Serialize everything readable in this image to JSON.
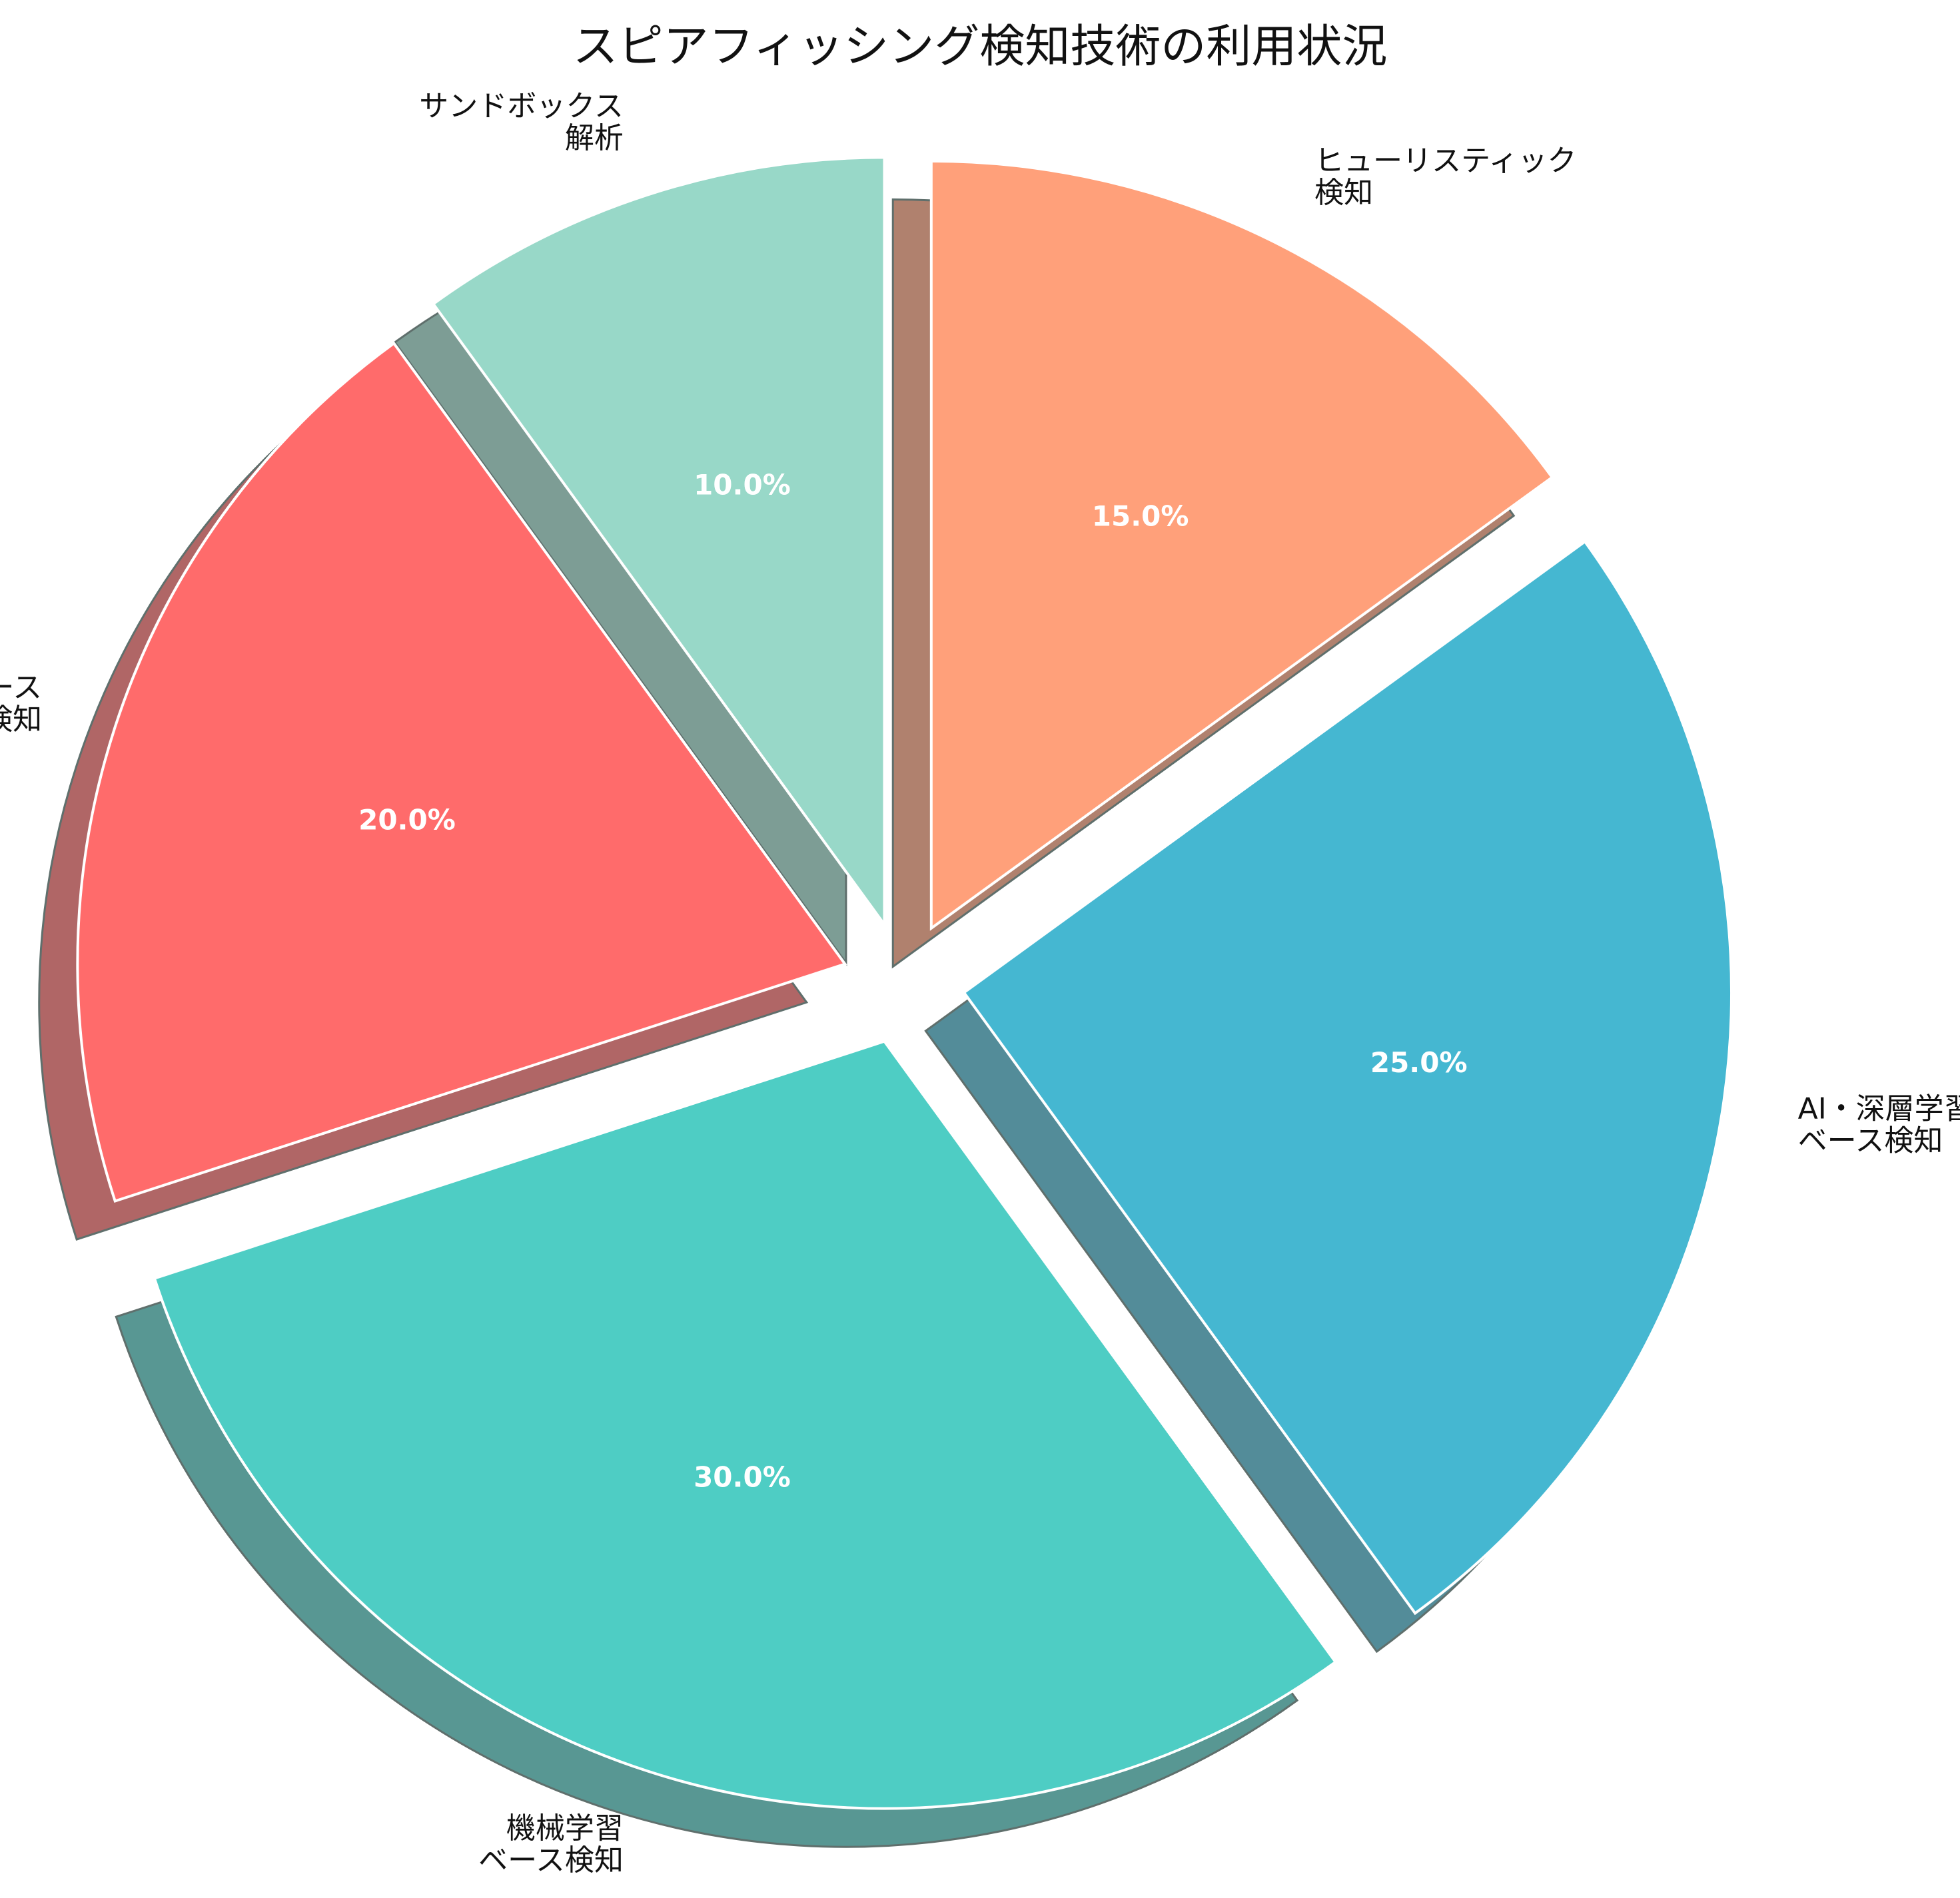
{
  "chart_data": {
    "type": "pie",
    "title": "スピアフィッシング検知技術の利用状況",
    "start_angle_deg": 90,
    "direction": "counterclockwise",
    "shadow": true,
    "slices": [
      {
        "label_lines": [
          "サンドボックス",
          "解析"
        ],
        "value": 10.0,
        "pct_text": "10.0%",
        "color": "#98D8C8",
        "exploded": true
      },
      {
        "label_lines": [
          "ルールベース",
          "検知"
        ],
        "value": 20.0,
        "pct_text": "20.0%",
        "color": "#FF6B6B",
        "exploded": true
      },
      {
        "label_lines": [
          "機械学習",
          "ベース検知"
        ],
        "value": 30.0,
        "pct_text": "30.0%",
        "color": "#4ECDC4",
        "exploded": true
      },
      {
        "label_lines": [
          "AI・深層学習",
          "ベース検知"
        ],
        "value": 25.0,
        "pct_text": "25.0%",
        "color": "#45B7D1",
        "exploded": true
      },
      {
        "label_lines": [
          "ヒューリスティック",
          "検知"
        ],
        "value": 15.0,
        "pct_text": "15.0%",
        "color": "#FFA07A",
        "exploded": true
      }
    ]
  }
}
